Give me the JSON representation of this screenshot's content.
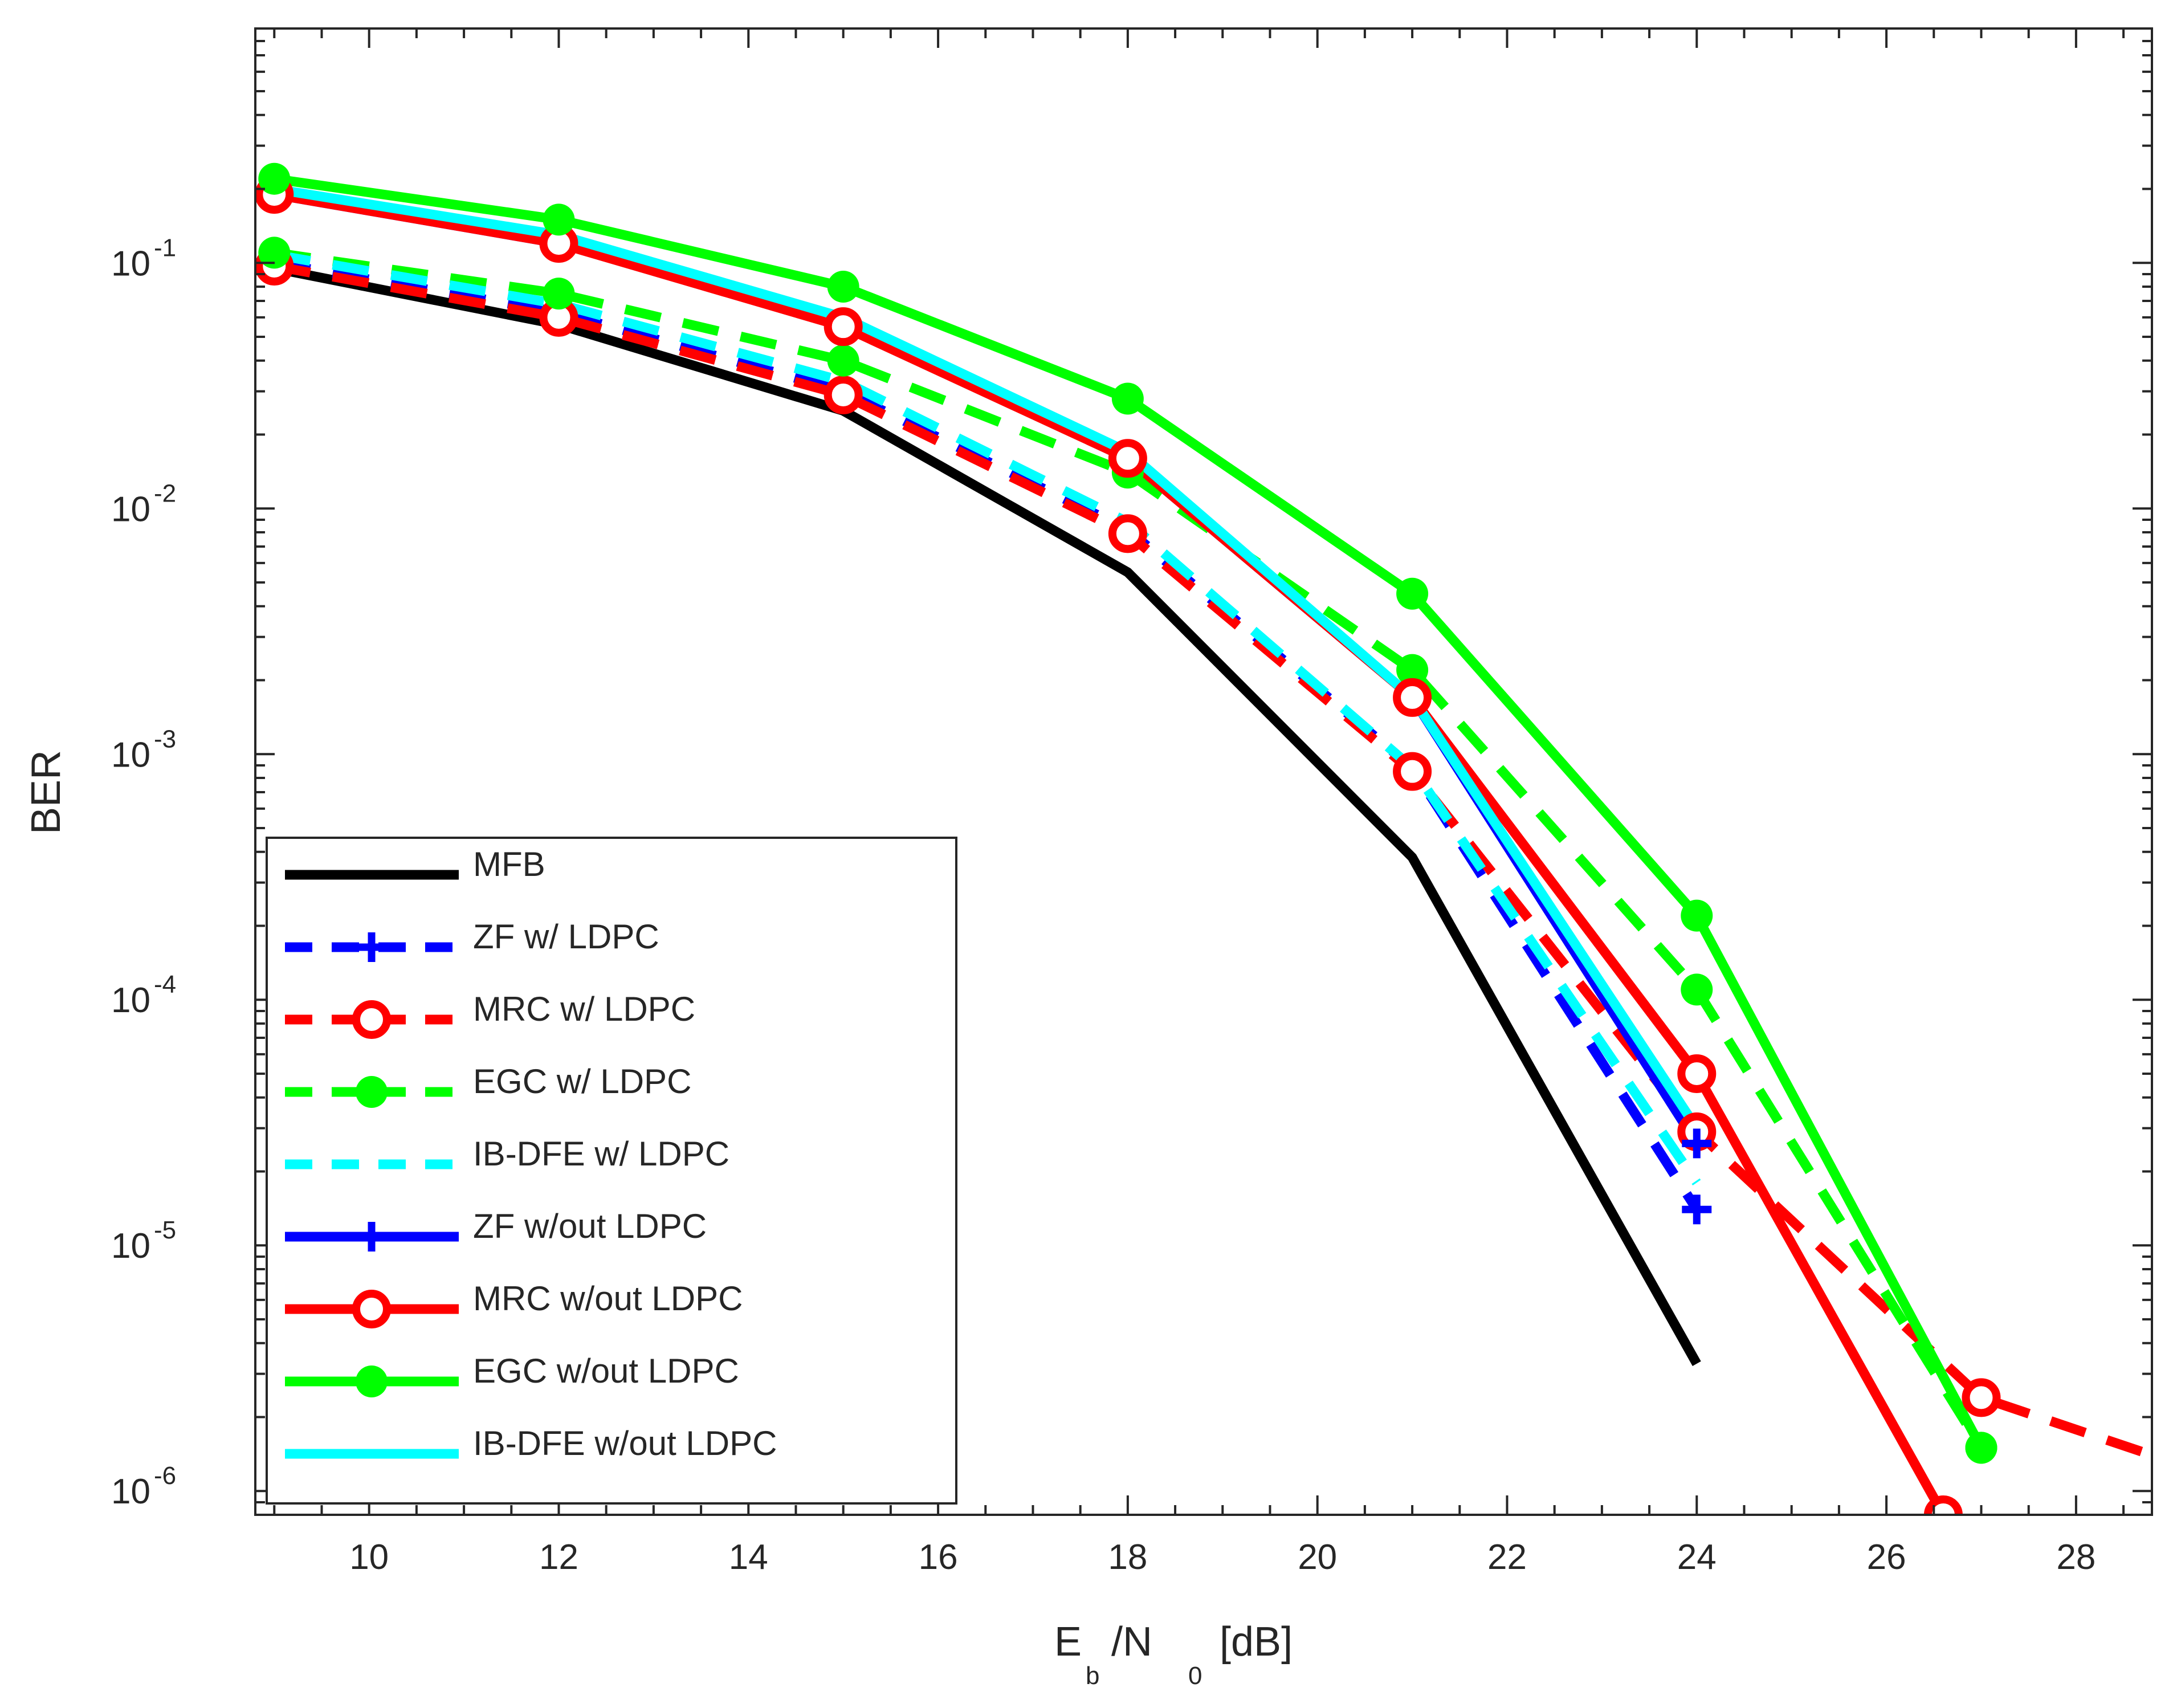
{
  "chart_data": {
    "type": "line",
    "yscale": "log",
    "xlabel": {
      "main_e": "E",
      "sub_b": "b",
      "slash_n": "/N",
      "sub_0": "0",
      "unit": "[dB]"
    },
    "ylabel": "BER",
    "xlim": [
      8.8,
      28.8
    ],
    "ylim": [
      8e-07,
      0.9
    ],
    "xticks": [
      10,
      12,
      14,
      16,
      18,
      20,
      22,
      24,
      26,
      28
    ],
    "yticks": [
      {
        "value": 0.1,
        "base": "10",
        "exp": "-1"
      },
      {
        "value": 0.01,
        "base": "10",
        "exp": "-2"
      },
      {
        "value": 0.001,
        "base": "10",
        "exp": "-3"
      },
      {
        "value": 0.0001,
        "base": "10",
        "exp": "-4"
      },
      {
        "value": 1e-05,
        "base": "10",
        "exp": "-5"
      },
      {
        "value": 1e-06,
        "base": "10",
        "exp": "-6"
      }
    ],
    "grid": false,
    "legend_position": "bottom-left",
    "series": [
      {
        "name": "MFB",
        "color": "#000000",
        "dash": "solid",
        "marker": "none",
        "x": [
          9,
          12,
          15,
          18,
          21,
          24
        ],
        "y": [
          0.095,
          0.056,
          0.025,
          0.0055,
          0.00038,
          3.3e-06
        ]
      },
      {
        "name": "ZF w/ LDPC",
        "color": "#0000ff",
        "dash": "dashed",
        "marker": "plus",
        "x": [
          9,
          12,
          15,
          18,
          21,
          24
        ],
        "y": [
          0.1,
          0.063,
          0.03,
          0.0082,
          0.00088,
          1.4e-05
        ]
      },
      {
        "name": "MRC w/ LDPC",
        "color": "#ff0000",
        "dash": "dashed",
        "marker": "circle",
        "x": [
          9,
          12,
          15,
          18,
          21,
          24,
          27,
          28.8
        ],
        "y": [
          0.097,
          0.06,
          0.029,
          0.0079,
          0.00085,
          2.9e-05,
          2.4e-06,
          1.4e-06
        ]
      },
      {
        "name": "EGC w/ LDPC",
        "color": "#00ff00",
        "dash": "dashed",
        "marker": "dot",
        "x": [
          9,
          12,
          15,
          18,
          21,
          24,
          27
        ],
        "y": [
          0.11,
          0.075,
          0.04,
          0.014,
          0.0022,
          0.00011,
          1.5e-06
        ]
      },
      {
        "name": "IB-DFE w/ LDPC",
        "color": "#00ffff",
        "dash": "dashed",
        "marker": "none",
        "x": [
          9,
          12,
          15,
          18,
          21,
          24
        ],
        "y": [
          0.108,
          0.068,
          0.033,
          0.0088,
          0.00088,
          1.8e-05
        ]
      },
      {
        "name": "ZF w/out LDPC",
        "color": "#0000ff",
        "dash": "solid",
        "marker": "plus",
        "x": [
          9,
          12,
          15,
          18,
          21,
          24
        ],
        "y": [
          0.19,
          0.12,
          0.056,
          0.016,
          0.0017,
          2.6e-05
        ]
      },
      {
        "name": "MRC w/out LDPC",
        "color": "#ff0000",
        "dash": "solid",
        "marker": "circle",
        "x": [
          9,
          12,
          15,
          18,
          21,
          24,
          26.6
        ],
        "y": [
          0.19,
          0.12,
          0.055,
          0.016,
          0.0017,
          5e-05,
          8e-07
        ]
      },
      {
        "name": "EGC w/out LDPC",
        "color": "#00ff00",
        "dash": "solid",
        "marker": "dot",
        "x": [
          9,
          12,
          15,
          18,
          21,
          24,
          27
        ],
        "y": [
          0.22,
          0.15,
          0.08,
          0.028,
          0.0045,
          0.00022,
          1.5e-06
        ]
      },
      {
        "name": "IB-DFE w/out LDPC",
        "color": "#00ffff",
        "dash": "solid",
        "marker": "none",
        "x": [
          9,
          12,
          15,
          18,
          21,
          24
        ],
        "y": [
          0.2,
          0.13,
          0.06,
          0.017,
          0.0017,
          3e-05
        ]
      }
    ]
  }
}
